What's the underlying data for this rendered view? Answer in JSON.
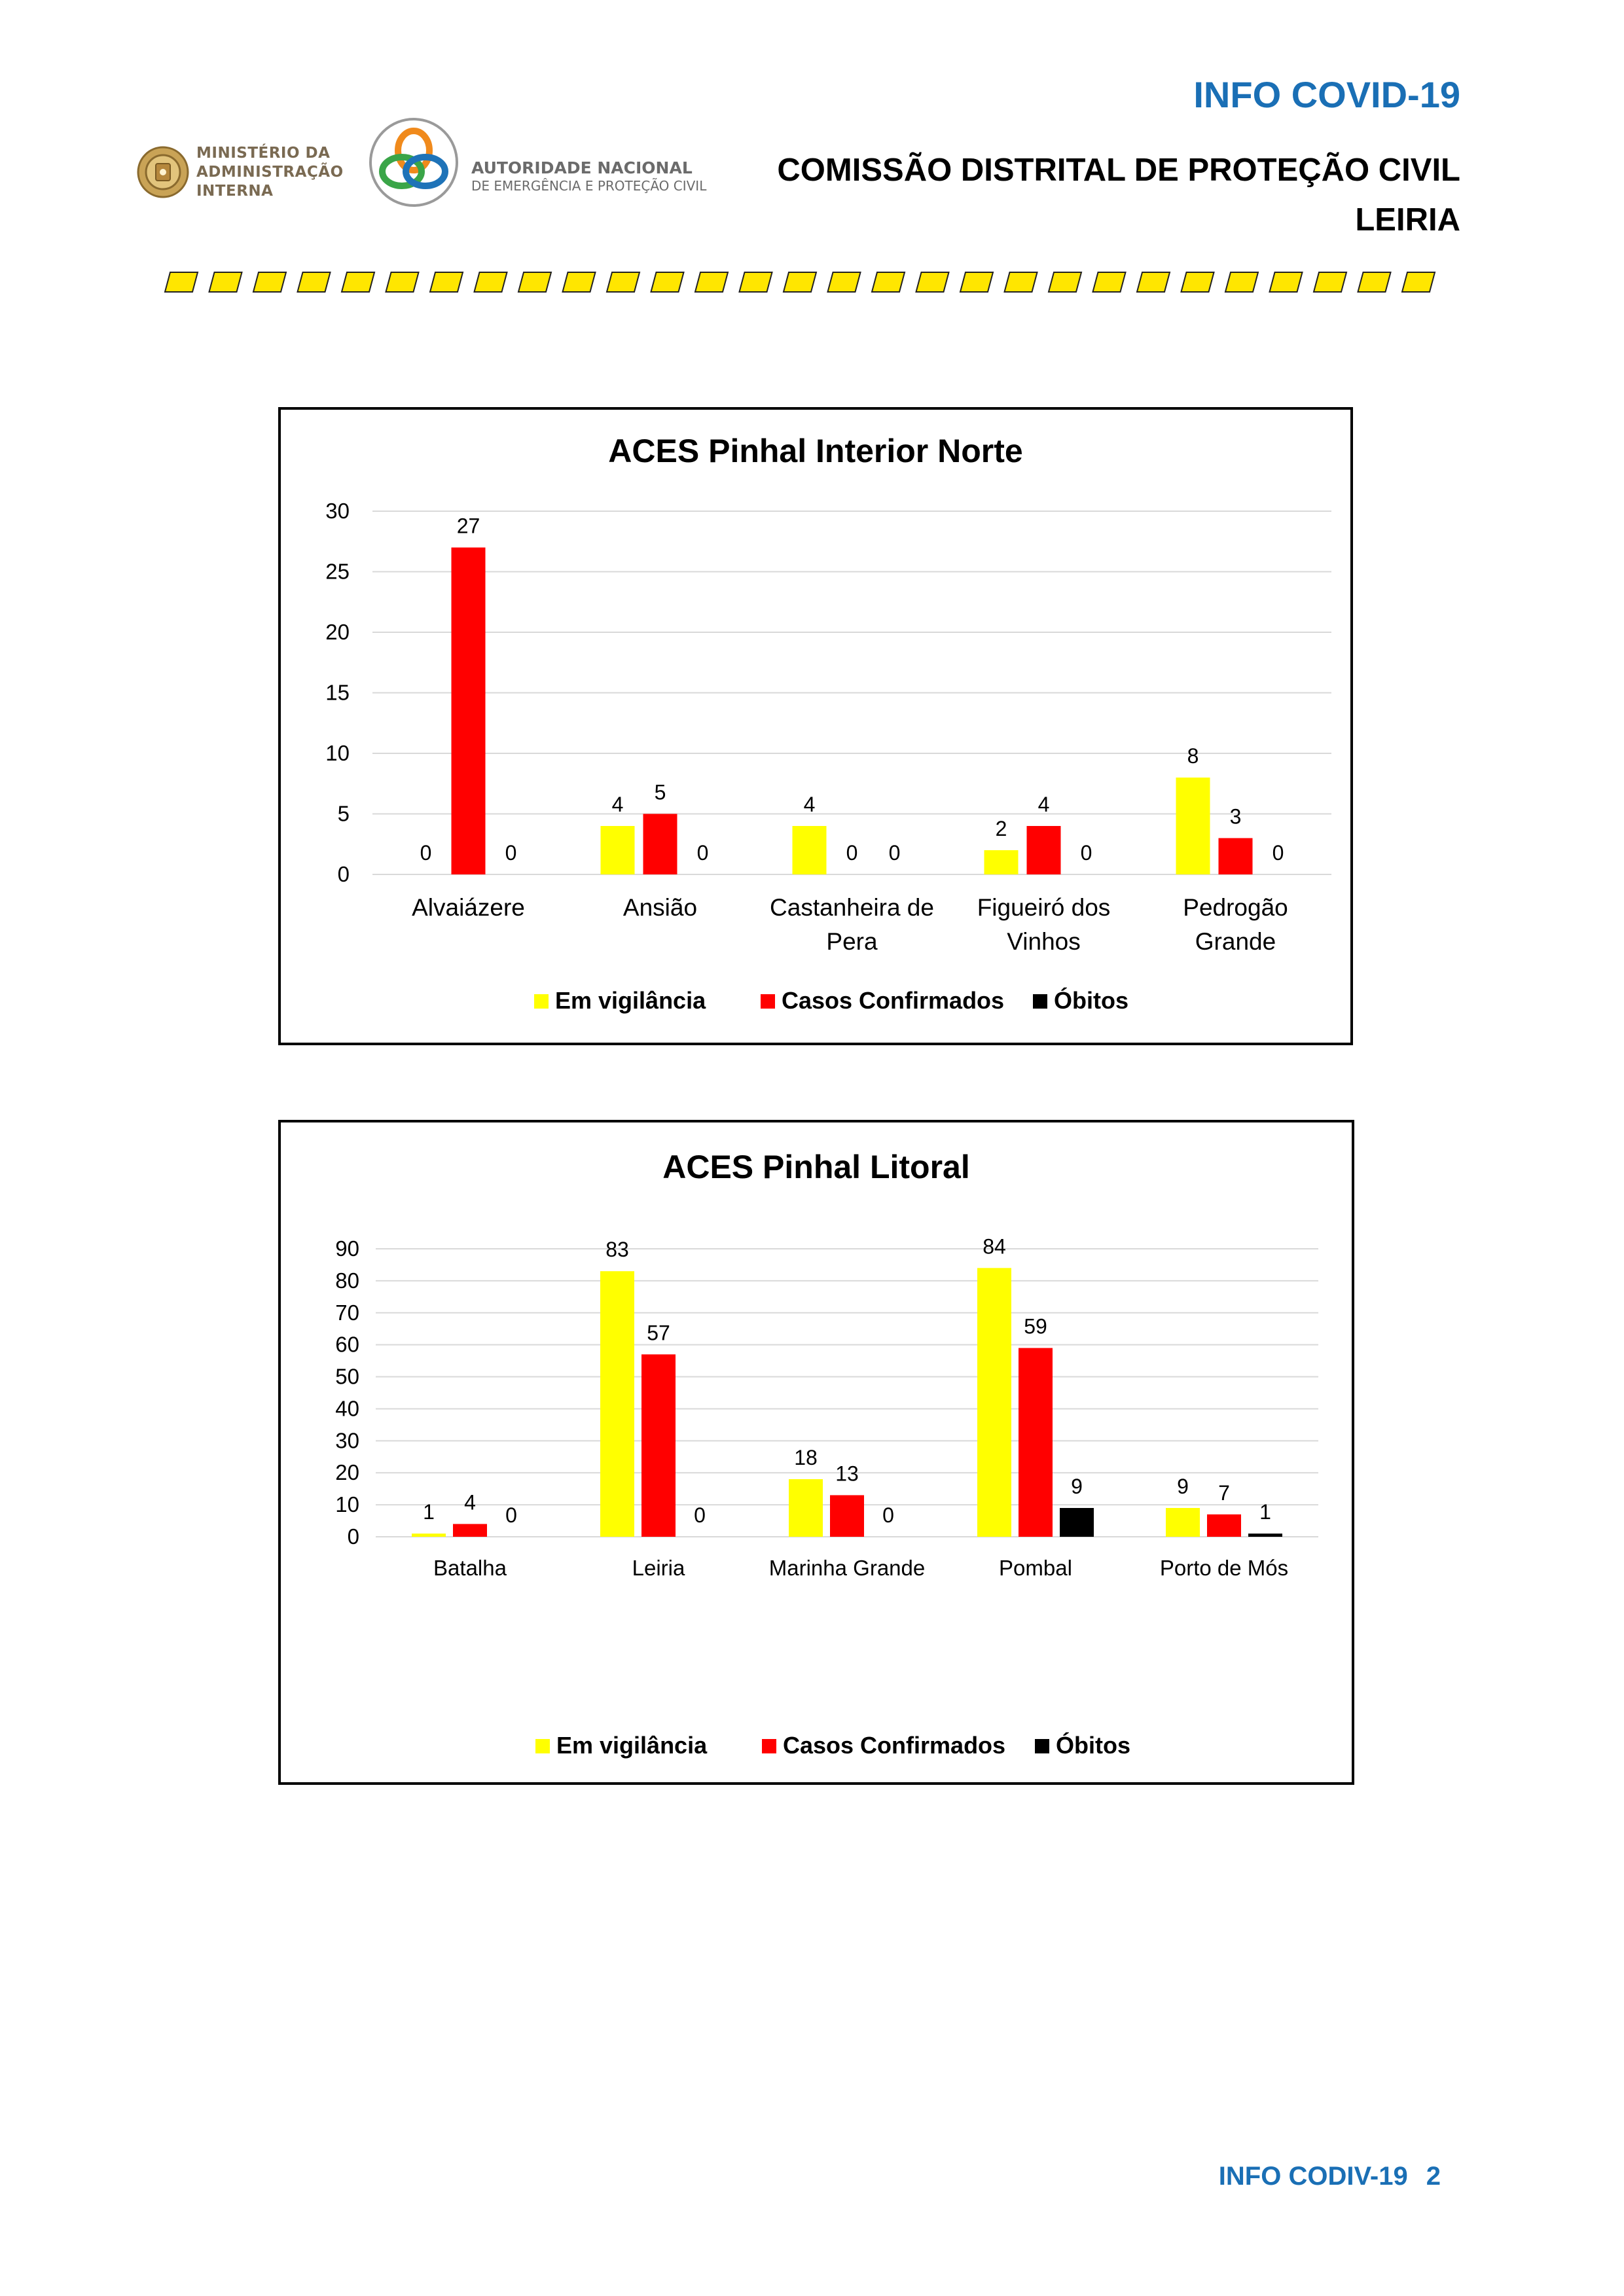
{
  "header": {
    "title": "INFO COVID-19",
    "subtitle": "COMISSÃO DISTRITAL DE PROTEÇÃO CIVIL",
    "district": "LEIRIA"
  },
  "logos": {
    "ministry_lines": [
      "MINISTÉRIO DA",
      "ADMINISTRAÇÃO",
      "INTERNA"
    ],
    "anepc_line1": "AUTORIDADE NACIONAL",
    "anepc_line2": "DE EMERGÊNCIA E PROTEÇÃO CIVIL"
  },
  "colors": {
    "accent_blue": "#1a6fb5",
    "stripe_yellow": "#ffe600",
    "em_vigilancia": "#ffff00",
    "casos_confirmados": "#ff0000",
    "obitos": "#000000"
  },
  "chart_data": [
    {
      "type": "bar",
      "title": "ACES Pinhal Interior Norte",
      "categories": [
        [
          "Alvaiázere"
        ],
        [
          "Ansião"
        ],
        [
          "Castanheira de",
          "Pera"
        ],
        [
          "Figueiró dos",
          "Vinhos"
        ],
        [
          "Pedrogão",
          "Grande"
        ]
      ],
      "series": [
        {
          "name": "Em vigilância",
          "color": "#ffff00",
          "values": [
            0,
            4,
            4,
            2,
            8
          ]
        },
        {
          "name": "Casos Confirmados",
          "color": "#ff0000",
          "values": [
            27,
            5,
            0,
            4,
            3
          ]
        },
        {
          "name": "Óbitos",
          "color": "#000000",
          "values": [
            0,
            0,
            0,
            0,
            0
          ]
        }
      ],
      "ylim": [
        0,
        30
      ],
      "yticks": [
        0,
        5,
        10,
        15,
        20,
        25,
        30
      ],
      "grid": true,
      "legend": "bottom"
    },
    {
      "type": "bar",
      "title": "ACES Pinhal Litoral",
      "categories": [
        [
          "Batalha"
        ],
        [
          "Leiria"
        ],
        [
          "Marinha Grande"
        ],
        [
          "Pombal"
        ],
        [
          "Porto de Mós"
        ]
      ],
      "series": [
        {
          "name": "Em vigilância",
          "color": "#ffff00",
          "values": [
            1,
            83,
            18,
            84,
            9
          ]
        },
        {
          "name": "Casos Confirmados",
          "color": "#ff0000",
          "values": [
            4,
            57,
            13,
            59,
            7
          ]
        },
        {
          "name": "Óbitos",
          "color": "#000000",
          "values": [
            0,
            0,
            0,
            9,
            1
          ]
        }
      ],
      "ylim": [
        0,
        90
      ],
      "yticks": [
        0,
        10,
        20,
        30,
        40,
        50,
        60,
        70,
        80,
        90
      ],
      "grid": true,
      "legend": "bottom"
    }
  ],
  "footer": {
    "label": "INFO CODIV-19",
    "page": "2"
  }
}
